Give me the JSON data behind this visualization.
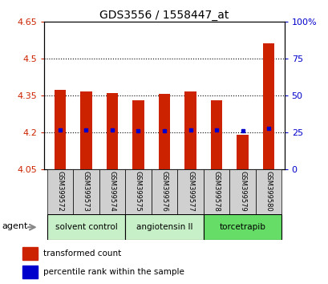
{
  "title": "GDS3556 / 1558447_at",
  "samples": [
    "GSM399572",
    "GSM399573",
    "GSM399574",
    "GSM399575",
    "GSM399576",
    "GSM399577",
    "GSM399578",
    "GSM399579",
    "GSM399580"
  ],
  "bar_tops": [
    4.37,
    4.365,
    4.36,
    4.33,
    4.355,
    4.365,
    4.33,
    4.19,
    4.56
  ],
  "bar_bottom": 4.05,
  "percentile_values": [
    4.21,
    4.21,
    4.21,
    4.205,
    4.205,
    4.21,
    4.21,
    4.205,
    4.215
  ],
  "ylim_left": [
    4.05,
    4.65
  ],
  "ylim_right": [
    0,
    100
  ],
  "yticks_left": [
    4.05,
    4.2,
    4.35,
    4.5,
    4.65
  ],
  "ytick_labels_left": [
    "4.05",
    "4.2",
    "4.35",
    "4.5",
    "4.65"
  ],
  "yticks_right": [
    0,
    25,
    50,
    75,
    100
  ],
  "ytick_labels_right": [
    "0",
    "25",
    "50",
    "75",
    "100%"
  ],
  "groups": [
    {
      "label": "solvent control",
      "start": 0,
      "end": 2,
      "color": "#c8f0c8"
    },
    {
      "label": "angiotensin II",
      "start": 3,
      "end": 5,
      "color": "#c8f0c8"
    },
    {
      "label": "torcetrapib",
      "start": 6,
      "end": 8,
      "color": "#66dd66"
    }
  ],
  "bar_color": "#cc2200",
  "dot_color": "#0000cc",
  "bar_width": 0.45,
  "agent_label": "agent",
  "legend_bar_label": "transformed count",
  "legend_dot_label": "percentile rank within the sample",
  "sample_box_color": "#d0d0d0",
  "plot_bg_color": "#ffffff",
  "left_tick_color": "#cc2200",
  "right_tick_color": "#0000cc"
}
